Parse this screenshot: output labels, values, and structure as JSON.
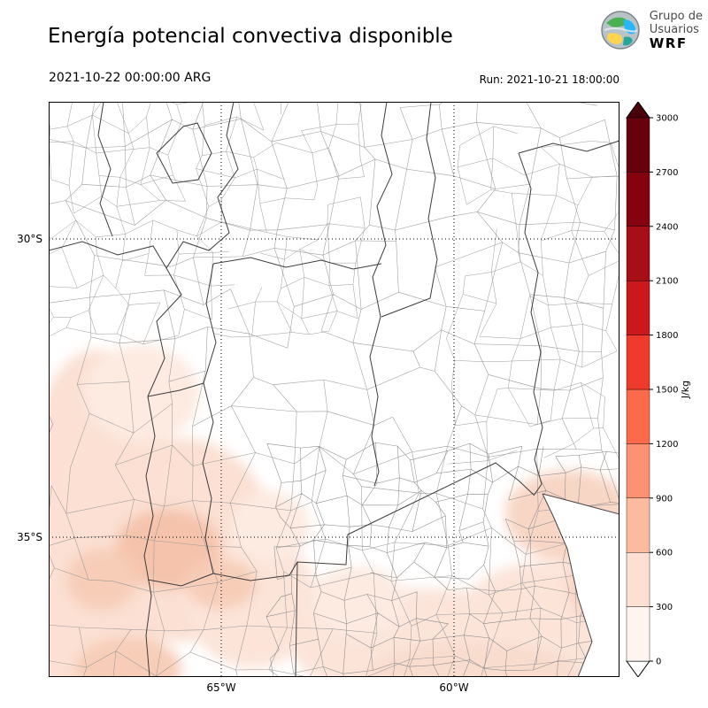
{
  "header": {
    "title": "Energía potencial convectiva disponible",
    "logo": {
      "line1": "Grupo de",
      "line2": "Usuarios",
      "line3": "WRF"
    }
  },
  "subheader": {
    "valid_time": "2021-10-22 00:00:00 ARG",
    "run": "Run: 2021-10-21 18:00:00"
  },
  "axes": {
    "y_ticks": [
      "30°S",
      "35°S"
    ],
    "x_ticks": [
      "65°W",
      "60°W"
    ]
  },
  "colorbar": {
    "label": "J/kg",
    "ticks": [
      "0",
      "300",
      "600",
      "900",
      "1200",
      "1500",
      "1800",
      "2100",
      "2400",
      "2700",
      "3000"
    ],
    "colors": [
      "#fff5f0",
      "#fee0d2",
      "#fcbba1",
      "#fc9272",
      "#fb6a4a",
      "#ef3b2c",
      "#cb181d",
      "#a50f15",
      "#84030f",
      "#67000d"
    ],
    "under_color": "#ffffff",
    "over_color": "#4a000a"
  },
  "chart_data": {
    "type": "heatmap",
    "title": "Energía potencial convectiva disponible",
    "variable": "CAPE (convective available potential energy)",
    "units": "J/kg",
    "valid_time": "2021-10-22 00:00:00 ARG",
    "run_time": "Run: 2021-10-21 18:00:00",
    "colormap": "Reds",
    "levels": [
      0,
      300,
      600,
      900,
      1200,
      1500,
      1800,
      2100,
      2400,
      2700,
      3000
    ],
    "colorbar_extend": "both",
    "lat_gridlines": [
      "30°S",
      "35°S"
    ],
    "lon_gridlines": [
      "65°W",
      "60°W"
    ],
    "grid_style": "dotted",
    "regions": [
      {
        "area": "southwest of domain (Mendoza / San Luis / La Pampa)",
        "value_range": [
          0,
          600
        ]
      },
      {
        "area": "small darker patches near 65°W 35.5°S",
        "value_range": [
          300,
          600
        ]
      },
      {
        "area": "southern and southeastern Buenos Aires province and coast",
        "value_range": [
          0,
          600
        ]
      },
      {
        "area": "remainder of domain (north and center)",
        "value_range": [
          0,
          300
        ]
      }
    ]
  }
}
